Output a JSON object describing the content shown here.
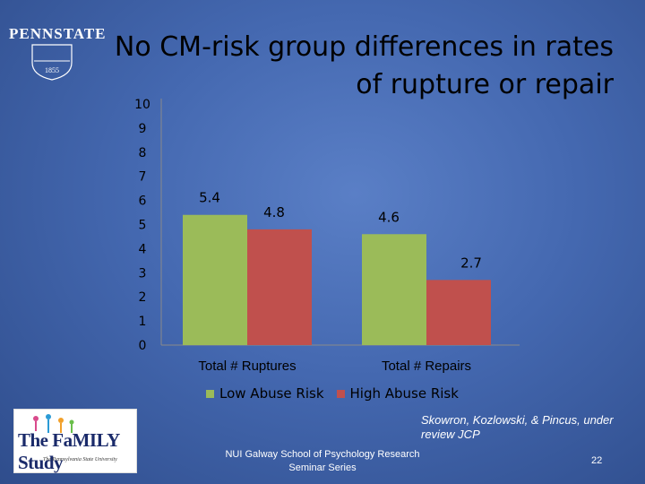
{
  "slide": {
    "title_line1": "No CM-risk group differences in rates",
    "title_line2": "of rupture or repair",
    "logo_text": "PENNSTATE",
    "logo_year": "1855",
    "family_logo_text": "The FaMILY Study",
    "family_logo_sub": "The Pennsylvania State University",
    "citation": "Skowron, Kozlowski, & Pincus, under review JCP",
    "footer": "NUI Galway School of Psychology Research Seminar Series",
    "page_number": "22"
  },
  "chart_data": {
    "type": "bar",
    "categories": [
      "Total # Ruptures",
      "Total # Repairs"
    ],
    "series": [
      {
        "name": "Low Abuse Risk",
        "values": [
          5.4,
          4.6
        ],
        "color": "#9bbb59"
      },
      {
        "name": "High Abuse Risk",
        "values": [
          4.8,
          2.7
        ],
        "color": "#c0504d"
      }
    ],
    "data_labels": [
      [
        "5.4",
        "4.6"
      ],
      [
        "4.8",
        "2.7"
      ]
    ],
    "ylim": [
      0,
      10
    ],
    "yticks": [
      "0",
      "1",
      "2",
      "3",
      "4",
      "5",
      "6",
      "7",
      "8",
      "9",
      "10"
    ],
    "legend_position": "bottom",
    "grid": false
  }
}
